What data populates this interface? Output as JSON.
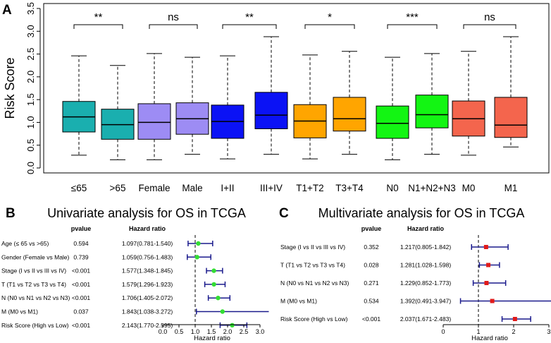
{
  "chart_data": [
    {
      "panel": "A",
      "type": "box",
      "ylabel": "Risk Score",
      "ylim": [
        0,
        3.5
      ],
      "yticks": [
        "0.0",
        "0.5",
        "1.0",
        "1.5",
        "2.0",
        "2.5",
        "3.0",
        "3.5"
      ],
      "categories": [
        "≤65",
        ">65",
        "Female",
        "Male",
        "I+II",
        "III+IV",
        "T1+T2",
        "T3+T4",
        "N0",
        "N1+N2+N3",
        "M0",
        "M1"
      ],
      "colors": [
        "#1aafaf",
        "#1aafaf",
        "#9d8cf4",
        "#9d8cf4",
        "#0b12f5",
        "#0b12f5",
        "#ffa500",
        "#ffa500",
        "#13f513",
        "#13f513",
        "#f4654d",
        "#f4654d"
      ],
      "boxes": [
        {
          "min": 0.28,
          "q1": 0.79,
          "median": 1.12,
          "q3": 1.46,
          "max": 2.46
        },
        {
          "min": 0.18,
          "q1": 0.63,
          "median": 0.95,
          "q3": 1.29,
          "max": 2.25
        },
        {
          "min": 0.18,
          "q1": 0.63,
          "median": 1.0,
          "q3": 1.41,
          "max": 2.51
        },
        {
          "min": 0.3,
          "q1": 0.74,
          "median": 1.08,
          "q3": 1.43,
          "max": 2.43
        },
        {
          "min": 0.2,
          "q1": 0.65,
          "median": 1.02,
          "q3": 1.38,
          "max": 2.46
        },
        {
          "min": 0.3,
          "q1": 0.86,
          "median": 1.16,
          "q3": 1.66,
          "max": 2.88
        },
        {
          "min": 0.2,
          "q1": 0.66,
          "median": 1.03,
          "q3": 1.39,
          "max": 2.48
        },
        {
          "min": 0.3,
          "q1": 0.81,
          "median": 1.08,
          "q3": 1.55,
          "max": 2.56
        },
        {
          "min": 0.18,
          "q1": 0.65,
          "median": 0.98,
          "q3": 1.36,
          "max": 2.43
        },
        {
          "min": 0.3,
          "q1": 0.88,
          "median": 1.17,
          "q3": 1.6,
          "max": 2.51
        },
        {
          "min": 0.28,
          "q1": 0.7,
          "median": 1.08,
          "q3": 1.47,
          "max": 2.56
        },
        {
          "min": 0.46,
          "q1": 0.67,
          "median": 0.94,
          "q3": 1.55,
          "max": 2.88
        }
      ],
      "comparisons": [
        {
          "pair": [
            0,
            1
          ],
          "label": "**"
        },
        {
          "pair": [
            2,
            3
          ],
          "label": "ns"
        },
        {
          "pair": [
            4,
            5
          ],
          "label": "**"
        },
        {
          "pair": [
            6,
            7
          ],
          "label": "*"
        },
        {
          "pair": [
            8,
            9
          ],
          "label": "***"
        },
        {
          "pair": [
            10,
            11
          ],
          "label": "ns"
        }
      ]
    },
    {
      "panel": "B",
      "type": "forest",
      "title": "Univariate analysis for OS in TCGA",
      "col_pvalue": "pvalue",
      "col_hr": "Hazard ratio",
      "xlabel": "Hazard ratio",
      "xlim": [
        0,
        3.0
      ],
      "xticks": [
        "0.0",
        "0.5",
        "1.0",
        "1.5",
        "2.0",
        "2.5",
        "3.0"
      ],
      "ref_line": 1,
      "point_color": "#33dd33",
      "rows": [
        {
          "label": "Age (≤ 65 vs >65)",
          "pvalue": "0.594",
          "hr_text": "1.097(0.781-1.540)",
          "hr": 1.097,
          "lo": 0.781,
          "hi": 1.54
        },
        {
          "label": "Gender (Female vs Male)",
          "pvalue": "0.739",
          "hr_text": "1.059(0.756-1.483)",
          "hr": 1.059,
          "lo": 0.756,
          "hi": 1.483
        },
        {
          "label": "Stage (I vs II vs III vs IV)",
          "pvalue": "<0.001",
          "hr_text": "1.577(1.348-1.845)",
          "hr": 1.577,
          "lo": 1.348,
          "hi": 1.845
        },
        {
          "label": "T (T1 vs T2 vs T3 vs T4)",
          "pvalue": "<0.001",
          "hr_text": "1.579(1.296-1.923)",
          "hr": 1.579,
          "lo": 1.296,
          "hi": 1.923
        },
        {
          "label": "N (N0 vs N1 vs N2 vs N3)",
          "pvalue": "<0.001",
          "hr_text": "1.706(1.405-2.072)",
          "hr": 1.706,
          "lo": 1.405,
          "hi": 2.072
        },
        {
          "label": "M (M0 vs M1)",
          "pvalue": "0.037",
          "hr_text": "1.843(1.038-3.272)",
          "hr": 1.843,
          "lo": 1.038,
          "hi": 3.272
        },
        {
          "label": "Risk Score (High vs Low)",
          "pvalue": "<0.001",
          "hr_text": "2.143(1.770-2.595)",
          "hr": 2.143,
          "lo": 1.77,
          "hi": 2.595
        }
      ]
    },
    {
      "panel": "C",
      "type": "forest",
      "title": "Multivariate analysis for OS in TCGA",
      "col_pvalue": "pvalue",
      "col_hr": "Hazard ratio",
      "xlabel": "Hazard ratio",
      "xlim": [
        0,
        3.0
      ],
      "xticks": [
        "0",
        "1",
        "2",
        "3"
      ],
      "ref_line": 1,
      "point_color": "#e01a1a",
      "rows": [
        {
          "label": "Stage (I vs II vs III vs IV)",
          "pvalue": "0.352",
          "hr_text": "1.217(0.805-1.842)",
          "hr": 1.217,
          "lo": 0.805,
          "hi": 1.842
        },
        {
          "label": "T (T1 vs T2 vs T3 vs T4)",
          "pvalue": "0.028",
          "hr_text": "1.281(1.028-1.598)",
          "hr": 1.281,
          "lo": 1.028,
          "hi": 1.598
        },
        {
          "label": "N (N0 vs N1 vs N2 vs N3)",
          "pvalue": "0.271",
          "hr_text": "1.229(0.852-1.773)",
          "hr": 1.229,
          "lo": 0.852,
          "hi": 1.773
        },
        {
          "label": "M (M0 vs M1)",
          "pvalue": "0.534",
          "hr_text": "1.392(0.491-3.947)",
          "hr": 1.392,
          "lo": 0.491,
          "hi": 3.947
        },
        {
          "label": "Risk Score (High vs Low)",
          "pvalue": "<0.001",
          "hr_text": "2.037(1.671-2.483)",
          "hr": 2.037,
          "lo": 1.671,
          "hi": 2.483
        }
      ]
    }
  ]
}
